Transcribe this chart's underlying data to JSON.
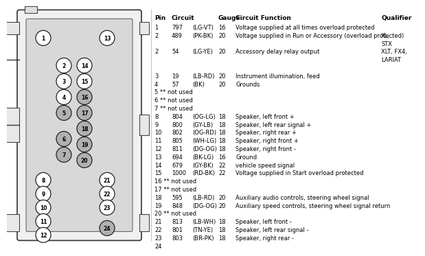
{
  "bg_color": "#ffffff",
  "gray_pins": [
    5,
    6,
    7,
    16,
    17,
    18,
    19,
    20,
    24
  ],
  "font_size_header": 6.5,
  "font_size_row": 6.0,
  "rows": [
    {
      "pin": "1",
      "circuit": "797",
      "cc": "(LG-VT)",
      "gauge": "16",
      "func": "Voltage supplied at all times overload protected",
      "qual": ""
    },
    {
      "pin": "2",
      "circuit": "489",
      "cc": "(PK-BK)",
      "gauge": "20",
      "func": "Voltage supplied in Run or Accessory (overload protected)",
      "qual": "XL,"
    },
    {
      "pin": "",
      "circuit": "",
      "cc": "",
      "gauge": "",
      "func": "",
      "qual": "STX"
    },
    {
      "pin": "2",
      "circuit": "54",
      "cc": "(LG-YE)",
      "gauge": "20",
      "func": "Accessory delay relay output",
      "qual": "XLT, FX4,"
    },
    {
      "pin": "",
      "circuit": "",
      "cc": "",
      "gauge": "",
      "func": "",
      "qual": "LARIAT"
    },
    {
      "pin": "",
      "circuit": "",
      "cc": "",
      "gauge": "",
      "func": "",
      "qual": ""
    },
    {
      "pin": "3",
      "circuit": "19",
      "cc": "(LB-RD)",
      "gauge": "20",
      "func": "Instrument illumination, feed",
      "qual": ""
    },
    {
      "pin": "4",
      "circuit": "57",
      "cc": "(BK)",
      "gauge": "20",
      "func": "Grounds",
      "qual": ""
    },
    {
      "pin": "5 ** not used",
      "circuit": "",
      "cc": "",
      "gauge": "",
      "func": "",
      "qual": ""
    },
    {
      "pin": "6 ** not used",
      "circuit": "",
      "cc": "",
      "gauge": "",
      "func": "",
      "qual": ""
    },
    {
      "pin": "7 ** not used",
      "circuit": "",
      "cc": "",
      "gauge": "",
      "func": "",
      "qual": ""
    },
    {
      "pin": "8",
      "circuit": "804",
      "cc": "(OG-LG)",
      "gauge": "18",
      "func": "Speaker, left front +",
      "qual": ""
    },
    {
      "pin": "9",
      "circuit": "800",
      "cc": "(GY-LB)",
      "gauge": "18",
      "func": "Speaker, left rear signal +",
      "qual": ""
    },
    {
      "pin": "10",
      "circuit": "802",
      "cc": "(OG-RD)",
      "gauge": "18",
      "func": "Speaker, right rear +",
      "qual": ""
    },
    {
      "pin": "11",
      "circuit": "805",
      "cc": "(WH-LG)",
      "gauge": "18",
      "func": "Speaker, right front +",
      "qual": ""
    },
    {
      "pin": "12",
      "circuit": "811",
      "cc": "(DG-OG)",
      "gauge": "18",
      "func": "Speaker, right front -",
      "qual": ""
    },
    {
      "pin": "13",
      "circuit": "694",
      "cc": "(BK-LG)",
      "gauge": "16",
      "func": "Ground",
      "qual": ""
    },
    {
      "pin": "14",
      "circuit": "679",
      "cc": "(GY-BK)",
      "gauge": "22",
      "func": "vehicle speed signal",
      "qual": ""
    },
    {
      "pin": "15",
      "circuit": "1000",
      "cc": "(RD-BK)",
      "gauge": "22",
      "func": "Voltage supplied in Start overload protected",
      "qual": ""
    },
    {
      "pin": "16 ** not used",
      "circuit": "",
      "cc": "",
      "gauge": "",
      "func": "",
      "qual": ""
    },
    {
      "pin": "17 ** not used",
      "circuit": "",
      "cc": "",
      "gauge": "",
      "func": "",
      "qual": ""
    },
    {
      "pin": "18",
      "circuit": "595",
      "cc": "(LB-RD)",
      "gauge": "20",
      "func": "Auxiliary audio controls, steering wheel signal",
      "qual": ""
    },
    {
      "pin": "19",
      "circuit": "848",
      "cc": "(DG-OG)",
      "gauge": "20",
      "func": "Auxiliary speed controls, steering wheel signal return",
      "qual": ""
    },
    {
      "pin": "20 ** not used",
      "circuit": "",
      "cc": "",
      "gauge": "",
      "func": "",
      "qual": ""
    },
    {
      "pin": "21",
      "circuit": "813",
      "cc": "(LB-WH)",
      "gauge": "18",
      "func": "Speaker, left front -",
      "qual": ""
    },
    {
      "pin": "22",
      "circuit": "801",
      "cc": "(TN-YE)",
      "gauge": "18",
      "func": "Speaker, left rear signal -",
      "qual": ""
    },
    {
      "pin": "23",
      "circuit": "803",
      "cc": "(BR-PK)",
      "gauge": "18",
      "func": "Speaker, right rear -",
      "qual": ""
    },
    {
      "pin": "24",
      "circuit": "",
      "cc": "",
      "gauge": "",
      "func": "",
      "qual": ""
    }
  ]
}
